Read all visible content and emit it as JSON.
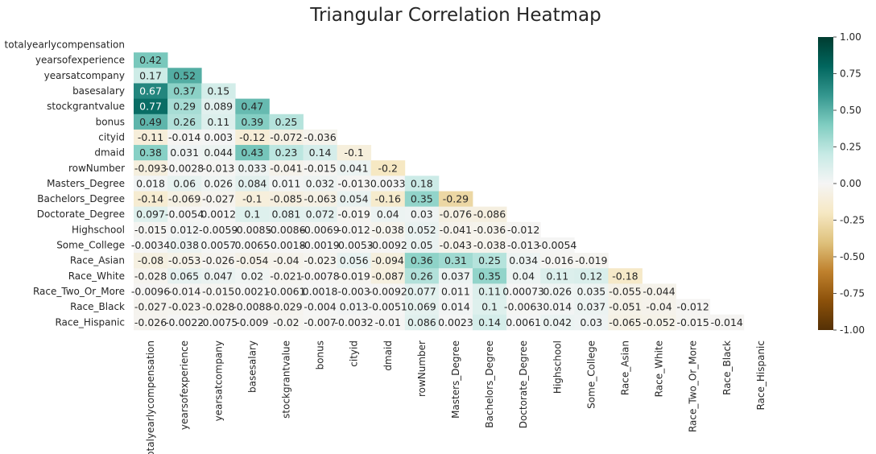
{
  "chart_data": {
    "type": "heatmap",
    "title": "Triangular Correlation Heatmap",
    "variables": [
      "totalyearlycompensation",
      "yearsofexperience",
      "yearsatcompany",
      "basesalary",
      "stockgrantvalue",
      "bonus",
      "cityid",
      "dmaid",
      "rowNumber",
      "Masters_Degree",
      "Bachelors_Degree",
      "Doctorate_Degree",
      "Highschool",
      "Some_College",
      "Race_Asian",
      "Race_White",
      "Race_Two_Or_More",
      "Race_Black",
      "Race_Hispanic"
    ],
    "mask": "upper triangle including diagonal",
    "values": [
      [],
      [
        0.42
      ],
      [
        0.17,
        0.52
      ],
      [
        0.67,
        0.37,
        0.15
      ],
      [
        0.77,
        0.29,
        0.089,
        0.47
      ],
      [
        0.49,
        0.26,
        0.11,
        0.39,
        0.25
      ],
      [
        -0.11,
        -0.014,
        0.003,
        -0.12,
        -0.072,
        -0.036
      ],
      [
        0.38,
        0.031,
        0.044,
        0.43,
        0.23,
        0.14,
        -0.1
      ],
      [
        -0.093,
        -0.0028,
        -0.013,
        0.033,
        -0.041,
        -0.015,
        0.041,
        -0.2
      ],
      [
        0.018,
        0.06,
        0.026,
        0.084,
        0.011,
        0.032,
        -0.013,
        0.0033,
        0.18
      ],
      [
        -0.14,
        -0.069,
        -0.027,
        -0.1,
        -0.085,
        -0.063,
        0.054,
        -0.16,
        0.35,
        -0.29
      ],
      [
        0.097,
        -0.0054,
        0.0012,
        0.1,
        0.081,
        0.072,
        -0.019,
        0.04,
        0.03,
        -0.076,
        -0.086
      ],
      [
        -0.015,
        0.012,
        -0.0059,
        -0.0085,
        -0.0086,
        -0.0069,
        -0.012,
        -0.038,
        0.052,
        -0.041,
        -0.036,
        -0.012
      ],
      [
        -0.0034,
        0.038,
        0.0057,
        0.0065,
        -0.0018,
        -0.0019,
        -0.0053,
        -0.0092,
        0.05,
        -0.043,
        -0.038,
        -0.013,
        -0.0054
      ],
      [
        -0.08,
        -0.053,
        -0.026,
        -0.054,
        -0.04,
        -0.023,
        0.056,
        -0.094,
        0.36,
        0.31,
        0.25,
        0.034,
        -0.016,
        -0.019
      ],
      [
        -0.028,
        0.065,
        0.047,
        0.02,
        -0.021,
        -0.0078,
        -0.019,
        -0.087,
        0.26,
        0.037,
        0.35,
        0.04,
        0.11,
        0.12,
        -0.18
      ],
      [
        -0.0096,
        -0.014,
        -0.015,
        0.0021,
        -0.0061,
        0.0018,
        -0.003,
        -0.0092,
        0.077,
        0.011,
        0.11,
        0.00073,
        0.026,
        0.035,
        -0.055,
        -0.044
      ],
      [
        -0.027,
        -0.023,
        -0.028,
        -0.0088,
        -0.029,
        -0.004,
        0.013,
        -0.0051,
        0.069,
        0.014,
        0.1,
        -0.0063,
        0.014,
        0.037,
        -0.051,
        -0.04,
        -0.012
      ],
      [
        -0.026,
        -0.0022,
        -0.0075,
        -0.009,
        -0.02,
        -0.007,
        -0.0032,
        -0.01,
        0.086,
        0.0023,
        0.14,
        0.0061,
        0.042,
        0.03,
        -0.065,
        -0.052,
        -0.015,
        -0.014
      ]
    ],
    "colormap": "BrBG",
    "vmin": -1.0,
    "vmax": 1.0,
    "colorbar_ticks": [
      "1.00",
      "0.75",
      "0.50",
      "0.25",
      "0.00",
      "-0.25",
      "-0.50",
      "-0.75",
      "-1.00"
    ]
  }
}
